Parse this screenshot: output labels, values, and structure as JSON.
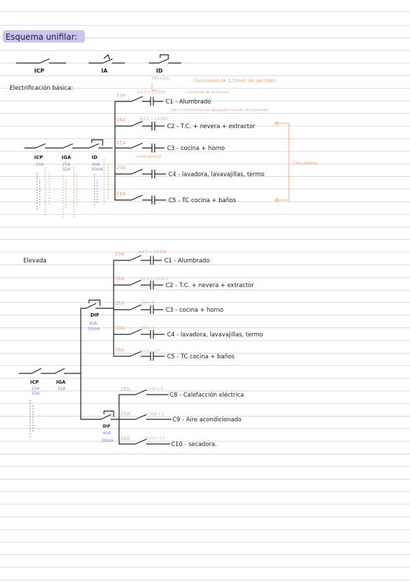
{
  "title": "Esquema unifilar:",
  "legend": {
    "icp": "ICP",
    "ia": "IA",
    "id": "ID"
  },
  "basic": {
    "heading": "Electrificación básica:",
    "main_labels": [
      "ICP",
      "IGA",
      "ID"
    ],
    "main_values": [
      [
        "25A"
      ],
      [
        "25A",
        "32A"
      ],
      [
        "40A",
        "30mA"
      ]
    ],
    "circuits": [
      {
        "amp": "10A",
        "section": "2x1,5 + 1,5  Ø16",
        "label": "C1 - Alumbrado"
      },
      {
        "amp": "16A",
        "section": "2x2,5 + 2,5  Ø20",
        "label": "C2 - T.C. + nevera + extractor"
      },
      {
        "amp": "25A",
        "section": "",
        "label": "C3 - cocina + horno"
      },
      {
        "amp": "20A",
        "section": "",
        "label": "C4 - lavadora, lavavajillas, termo"
      },
      {
        "amp": "16A",
        "section": "",
        "label": "C5 - TC cocina + baños"
      }
    ],
    "notes": {
      "top": "(Secciones de 1.5mm² de sección)",
      "pvc": "PVC rígido",
      "conductor": "→ conductor de protección",
      "phase": "Los n° conductores sin agrupados incluido de protección",
      "bracket": "Calculadora",
      "mid": "punto general"
    }
  },
  "elevated": {
    "heading": "Elevada",
    "main_labels": [
      "ICP",
      "IGA"
    ],
    "main_values": [
      [
        "25A",
        "32A"
      ],
      [
        "32A"
      ]
    ],
    "difs": [
      {
        "label": "DIF",
        "values": [
          "40A",
          "30mA"
        ]
      },
      {
        "label": "DIF",
        "values": [
          "40A",
          "30mA"
        ]
      }
    ],
    "circuits": [
      {
        "amp": "10A",
        "section": "2x1,5 + 1,5  Ø16",
        "label": "C1 - Alumbrado"
      },
      {
        "amp": "16A",
        "section": "2x2,5 + 2,5  Ø20",
        "label": "C2 - T.C. + nevera + extractor"
      },
      {
        "amp": "25A",
        "section": "2x4 + 6",
        "label": "C3 - cocina + horno"
      },
      {
        "amp": "20A",
        "section": "2x4 + 4",
        "label": "C4 - lavadora, lavavajillas, termo"
      },
      {
        "amp": "16A",
        "section": "2x2,5 + 2,5",
        "label": "C5 - TC cocina + baños"
      },
      {
        "amp": "25A",
        "section": "2x6 + 6",
        "label": "C8 - Calefacción eléctrica"
      },
      {
        "amp": "25A",
        "section": "2x6 + 6",
        "label": "C9 - Aire acondicionado"
      },
      {
        "amp": "16A",
        "section": "2x2,5 + 2,5",
        "label": "C10 - secadora."
      }
    ]
  },
  "colors": {
    "ink": "#1a1a1a",
    "blue": "#7b7fd6",
    "orange": "#f2a07a",
    "highlight": "#c9c5f0",
    "lines": "#d9d9dc"
  }
}
